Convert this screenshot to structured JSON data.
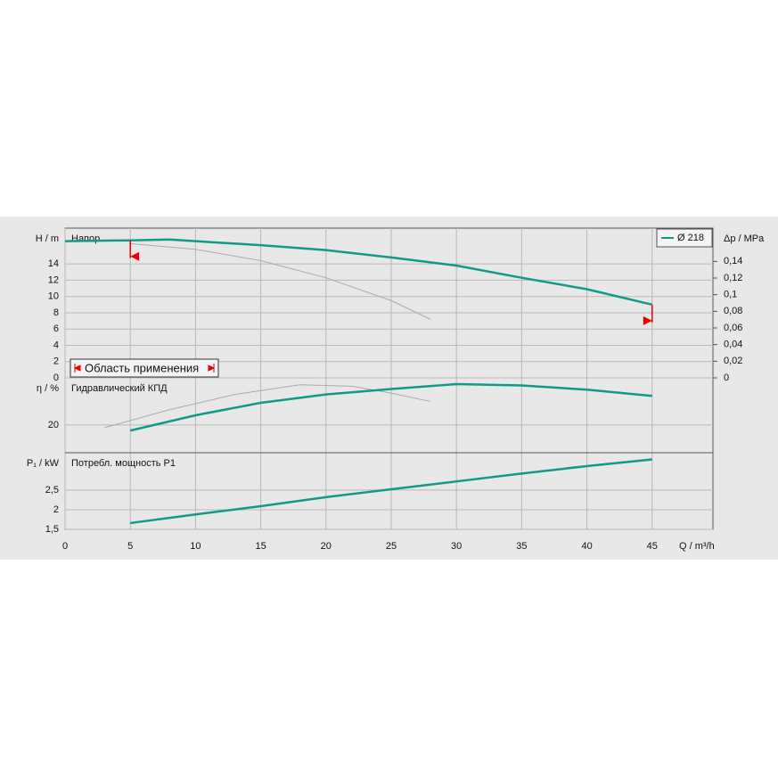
{
  "chart_data": {
    "type": "line",
    "x_label": "Q / m³/h",
    "xlim": [
      0,
      49.66
    ],
    "xticks": [
      0,
      5,
      10,
      15,
      20,
      25,
      30,
      35,
      40,
      45
    ],
    "range_label": "Область применения",
    "range_x": [
      5,
      45
    ],
    "panels": [
      {
        "label": "Напор",
        "ylabel": "H / m",
        "ylim": [
          0,
          18.4
        ],
        "yticks": [
          0,
          2,
          4,
          6,
          8,
          10,
          12,
          14
        ],
        "y2label": "Δp / MPa",
        "y2lim": [
          0,
          0.18
        ],
        "y2ticks": [
          0,
          {
            "value": 0.02,
            "label": "0,02"
          },
          {
            "value": 0.04,
            "label": "0,04"
          },
          {
            "value": 0.06,
            "label": "0,06"
          },
          {
            "value": 0.08,
            "label": "0,08"
          },
          {
            "value": 0.1,
            "label": "0,1"
          },
          {
            "value": 0.12,
            "label": "0,12"
          },
          {
            "value": 0.14,
            "label": "0,14"
          }
        ],
        "series": [
          {
            "color": "#aaaaaa",
            "x": [
              5,
              10,
              15,
              20,
              25,
              28
            ],
            "values": [
              16.5,
              15.8,
              14.4,
              12.3,
              9.5,
              7.2
            ]
          },
          {
            "name": "Ø 218",
            "color": "#129a88",
            "x": [
              0,
              5,
              8,
              15,
              20,
              25,
              30,
              35,
              40,
              45
            ],
            "values": [
              16.8,
              16.9,
              17.0,
              16.3,
              15.7,
              14.8,
              13.8,
              12.3,
              10.9,
              9.0
            ]
          }
        ]
      },
      {
        "label": "Гидравлический КПД",
        "ylabel": "η / %",
        "ylim": [
          0,
          54
        ],
        "yticks": [
          20
        ],
        "series": [
          {
            "color": "#aaaaaa",
            "x": [
              3,
              8,
              13,
              18,
              22,
              25,
              28
            ],
            "values": [
              18,
              31,
              42,
              49,
              48,
              43,
              37
            ]
          },
          {
            "color": "#129a88",
            "x": [
              5,
              10,
              15,
              20,
              25,
              30,
              35,
              40,
              45
            ],
            "values": [
              16,
              27,
              36,
              42,
              46,
              49.5,
              48.5,
              45.5,
              41
            ]
          }
        ]
      },
      {
        "label": "Потребл. мощность P1",
        "ylabel": "P₁ / kW",
        "ylim": [
          1.5,
          3.45
        ],
        "yticks": [
          {
            "value": 1.5,
            "label": "1,5"
          },
          2,
          {
            "value": 2.5,
            "label": "2,5"
          }
        ],
        "series": [
          {
            "color": "#129a88",
            "x": [
              5,
              10,
              15,
              20,
              25,
              30,
              35,
              40,
              45
            ],
            "values": [
              1.66,
              1.88,
              2.09,
              2.32,
              2.52,
              2.72,
              2.92,
              3.11,
              3.28
            ]
          }
        ]
      }
    ]
  }
}
